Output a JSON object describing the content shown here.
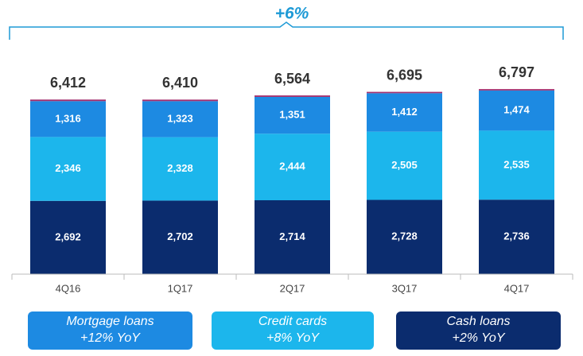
{
  "chart_data": {
    "type": "stacked_bar",
    "annotation": "+6%",
    "categories": [
      "4Q16",
      "1Q17",
      "2Q17",
      "3Q17",
      "4Q17"
    ],
    "series": [
      {
        "name": "Cash loans",
        "yoy": "+2% YoY",
        "color": "#0b2c6e",
        "values": [
          2692,
          2702,
          2714,
          2728,
          2736
        ],
        "value_labels": [
          "2,692",
          "2,702",
          "2,714",
          "2,728",
          "2,736"
        ]
      },
      {
        "name": "Credit cards",
        "yoy": "+8% YoY",
        "color": "#1cb6ec",
        "values": [
          2346,
          2328,
          2444,
          2505,
          2535
        ],
        "value_labels": [
          "2,346",
          "2,328",
          "2,444",
          "2,505",
          "2,535"
        ]
      },
      {
        "name": "Mortgage loans",
        "yoy": "+12% YoY",
        "color": "#1d8ae2",
        "values": [
          1316,
          1323,
          1351,
          1412,
          1474
        ],
        "value_labels": [
          "1,316",
          "1,323",
          "1,351",
          "1,412",
          "1,474"
        ]
      },
      {
        "color": "#a3306f",
        "values": [
          58,
          57,
          55,
          50,
          52
        ]
      }
    ],
    "totals": [
      6412,
      6410,
      6564,
      6695,
      6797
    ],
    "total_labels": [
      "6,412",
      "6,410",
      "6,564",
      "6,695",
      "6,797"
    ],
    "ylim": [
      0,
      7500
    ]
  }
}
